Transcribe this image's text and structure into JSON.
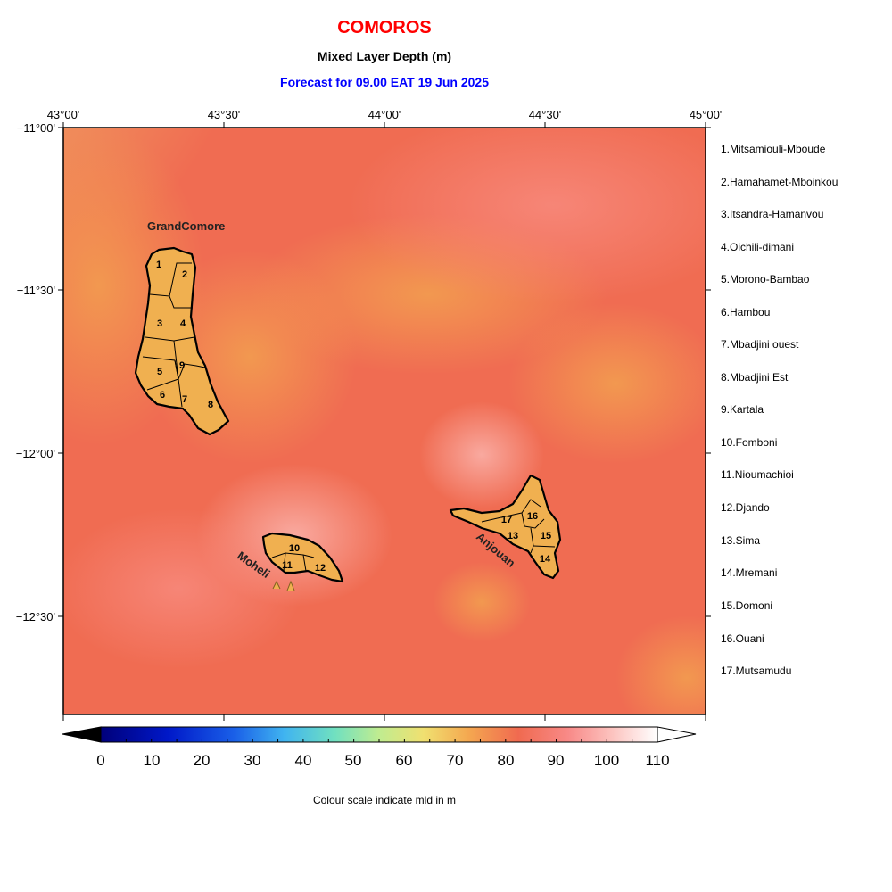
{
  "header": {
    "country": "COMOROS",
    "parameter": "Mixed Layer Depth (m)",
    "forecast": "Forecast for  09.00 EAT 19 Jun 2025"
  },
  "axes": {
    "lon_labels": [
      "43°00'",
      "43°30'",
      "44°00'",
      "44°30'",
      "45°00'"
    ],
    "lat_labels": [
      "−11°00'",
      "−11°30'",
      "−12°00'",
      "−12°30'"
    ]
  },
  "islands": {
    "grand_comore": "GrandComore",
    "moheli": "Moheli",
    "anjouan": "Anjouan"
  },
  "regions": [
    {
      "num": "1",
      "label": "1.Mitsamiouli-Mboude"
    },
    {
      "num": "2",
      "label": "2.Hamahamet-Mboinkou"
    },
    {
      "num": "3",
      "label": "3.Itsandra-Hamanvou"
    },
    {
      "num": "4",
      "label": "4.Oichili-dimani"
    },
    {
      "num": "5",
      "label": "5.Morono-Bambao"
    },
    {
      "num": "6",
      "label": "6.Hambou"
    },
    {
      "num": "7",
      "label": "7.Mbadjini ouest"
    },
    {
      "num": "8",
      "label": "8.Mbadjini Est"
    },
    {
      "num": "9",
      "label": "9.Kartala"
    },
    {
      "num": "10",
      "label": "10.Fomboni"
    },
    {
      "num": "11",
      "label": "11.Nioumachioi"
    },
    {
      "num": "12",
      "label": "12.Djando"
    },
    {
      "num": "13",
      "label": "13.Sima"
    },
    {
      "num": "14",
      "label": "14.Mremani"
    },
    {
      "num": "15",
      "label": "15.Domoni"
    },
    {
      "num": "16",
      "label": "16.Ouani"
    },
    {
      "num": "17",
      "label": "17.Mutsamudu"
    }
  ],
  "colorbar": {
    "ticks": [
      "0",
      "10",
      "20",
      "30",
      "40",
      "50",
      "60",
      "70",
      "80",
      "90",
      "100",
      "110"
    ],
    "caption": "Colour scale indicate mld in m"
  },
  "colors": {
    "title": "#ff0000",
    "forecast": "#0000ff",
    "land": "#f0b050",
    "sea_dominant": "#f06a50"
  }
}
